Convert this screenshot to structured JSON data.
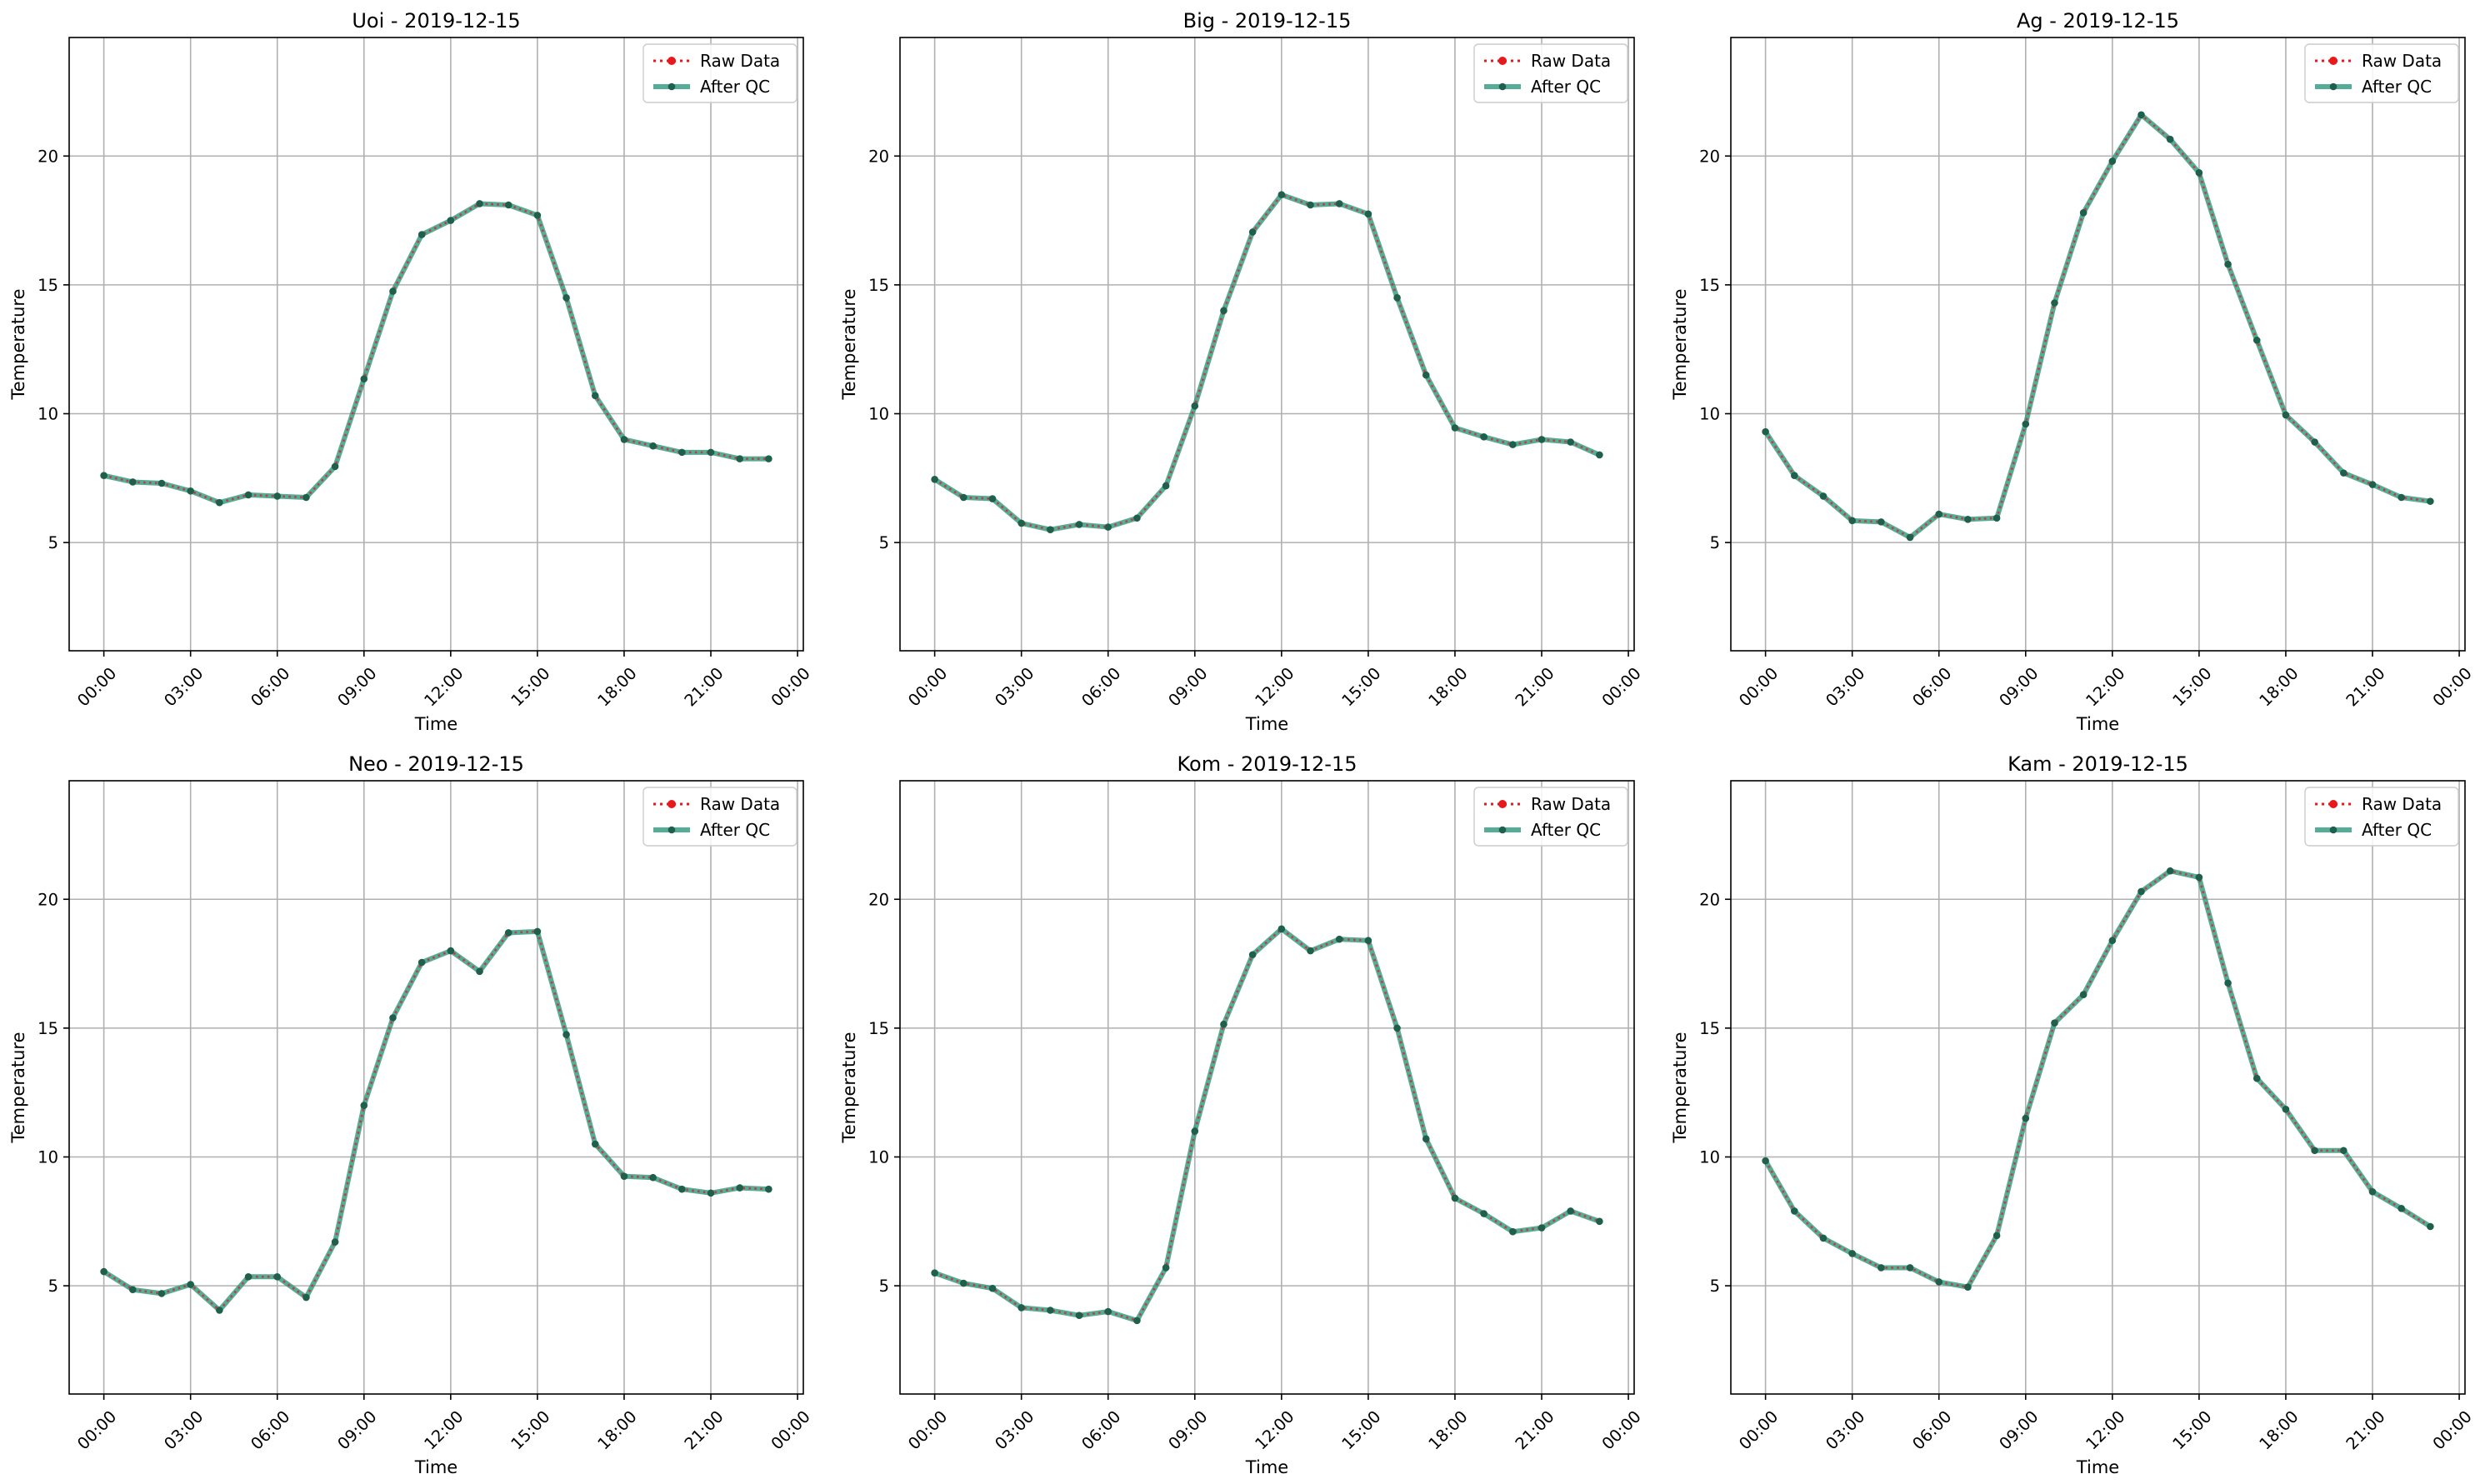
{
  "x_ticks": [
    "00:00",
    "03:00",
    "06:00",
    "09:00",
    "12:00",
    "15:00",
    "18:00",
    "21:00",
    "00:00"
  ],
  "y_ticks": [
    5,
    10,
    15,
    20
  ],
  "legend": {
    "raw": "Raw Data",
    "qc": "After QC"
  },
  "colors": {
    "raw": "#e8191b",
    "qc": "#2f9a80",
    "marker": "#1f5f4c",
    "grid": "#b0b0b0"
  },
  "chart_data": [
    {
      "type": "line",
      "title": "Uoi - 2019-12-15",
      "xlabel": "Time",
      "ylabel": "Temperature",
      "ylim": [
        0.8,
        24.6
      ],
      "xlim_hours": [
        -1.2,
        24.2
      ],
      "grid": true,
      "legend_position": "top-right",
      "x": [
        "00:00",
        "01:00",
        "02:00",
        "03:00",
        "04:00",
        "05:00",
        "06:00",
        "07:00",
        "08:00",
        "09:00",
        "10:00",
        "11:00",
        "12:00",
        "13:00",
        "14:00",
        "15:00",
        "16:00",
        "17:00",
        "18:00",
        "19:00",
        "20:00",
        "21:00",
        "22:00",
        "23:00"
      ],
      "series": [
        {
          "name": "Raw Data",
          "style": "dotted",
          "values": [
            7.6,
            7.35,
            7.3,
            7.0,
            6.55,
            6.85,
            6.8,
            6.75,
            7.95,
            11.35,
            14.75,
            16.95,
            17.5,
            18.15,
            18.1,
            17.7,
            14.5,
            10.7,
            9.0,
            8.75,
            8.5,
            8.5,
            8.25,
            8.25
          ]
        },
        {
          "name": "After QC",
          "style": "solid",
          "values": [
            7.6,
            7.35,
            7.3,
            7.0,
            6.55,
            6.85,
            6.8,
            6.75,
            7.95,
            11.35,
            14.75,
            16.95,
            17.5,
            18.15,
            18.1,
            17.7,
            14.5,
            10.7,
            9.0,
            8.75,
            8.5,
            8.5,
            8.25,
            8.25
          ]
        }
      ]
    },
    {
      "type": "line",
      "title": "Big - 2019-12-15",
      "xlabel": "Time",
      "ylabel": "Temperature",
      "ylim": [
        0.8,
        24.6
      ],
      "xlim_hours": [
        -1.2,
        24.2
      ],
      "grid": true,
      "legend_position": "top-right",
      "x": [
        "00:00",
        "01:00",
        "02:00",
        "03:00",
        "04:00",
        "05:00",
        "06:00",
        "07:00",
        "08:00",
        "09:00",
        "10:00",
        "11:00",
        "12:00",
        "13:00",
        "14:00",
        "15:00",
        "16:00",
        "17:00",
        "18:00",
        "19:00",
        "20:00",
        "21:00",
        "22:00",
        "23:00"
      ],
      "series": [
        {
          "name": "Raw Data",
          "style": "dotted",
          "values": [
            7.45,
            6.75,
            6.7,
            5.75,
            5.5,
            5.7,
            5.6,
            5.95,
            7.2,
            10.3,
            14.0,
            17.05,
            18.5,
            18.1,
            18.15,
            17.75,
            14.5,
            11.5,
            9.45,
            9.1,
            8.8,
            9.0,
            8.9,
            8.4
          ]
        },
        {
          "name": "After QC",
          "style": "solid",
          "values": [
            7.45,
            6.75,
            6.7,
            5.75,
            5.5,
            5.7,
            5.6,
            5.95,
            7.2,
            10.3,
            14.0,
            17.05,
            18.5,
            18.1,
            18.15,
            17.75,
            14.5,
            11.5,
            9.45,
            9.1,
            8.8,
            9.0,
            8.9,
            8.4
          ]
        }
      ]
    },
    {
      "type": "line",
      "title": "Ag - 2019-12-15",
      "xlabel": "Time",
      "ylabel": "Temperature",
      "ylim": [
        0.8,
        24.6
      ],
      "xlim_hours": [
        -1.2,
        24.2
      ],
      "grid": true,
      "legend_position": "top-right",
      "x": [
        "00:00",
        "01:00",
        "02:00",
        "03:00",
        "04:00",
        "05:00",
        "06:00",
        "07:00",
        "08:00",
        "09:00",
        "10:00",
        "11:00",
        "12:00",
        "13:00",
        "14:00",
        "15:00",
        "16:00",
        "17:00",
        "18:00",
        "19:00",
        "20:00",
        "21:00",
        "22:00",
        "23:00"
      ],
      "series": [
        {
          "name": "Raw Data",
          "style": "dotted",
          "values": [
            9.3,
            7.6,
            6.8,
            5.85,
            5.8,
            5.2,
            6.1,
            5.9,
            5.95,
            9.6,
            14.3,
            17.8,
            19.8,
            21.6,
            20.65,
            19.35,
            15.8,
            12.85,
            9.95,
            8.9,
            7.7,
            7.25,
            6.75,
            6.6
          ]
        },
        {
          "name": "After QC",
          "style": "solid",
          "values": [
            9.3,
            7.6,
            6.8,
            5.85,
            5.8,
            5.2,
            6.1,
            5.9,
            5.95,
            9.6,
            14.3,
            17.8,
            19.8,
            21.6,
            20.65,
            19.35,
            15.8,
            12.85,
            9.95,
            8.9,
            7.7,
            7.25,
            6.75,
            6.6
          ]
        }
      ]
    },
    {
      "type": "line",
      "title": "Neo - 2019-12-15",
      "xlabel": "Time",
      "ylabel": "Temperature",
      "ylim": [
        0.8,
        24.6
      ],
      "xlim_hours": [
        -1.2,
        24.2
      ],
      "grid": true,
      "legend_position": "top-right",
      "x": [
        "00:00",
        "01:00",
        "02:00",
        "03:00",
        "04:00",
        "05:00",
        "06:00",
        "07:00",
        "08:00",
        "09:00",
        "10:00",
        "11:00",
        "12:00",
        "13:00",
        "14:00",
        "15:00",
        "16:00",
        "17:00",
        "18:00",
        "19:00",
        "20:00",
        "21:00",
        "22:00",
        "23:00"
      ],
      "series": [
        {
          "name": "Raw Data",
          "style": "dotted",
          "values": [
            5.55,
            4.85,
            4.7,
            5.05,
            4.05,
            5.35,
            5.35,
            4.55,
            6.7,
            12.0,
            15.4,
            17.55,
            18.0,
            17.2,
            18.7,
            18.75,
            14.75,
            10.5,
            9.25,
            9.2,
            8.75,
            8.6,
            8.8,
            8.75
          ]
        },
        {
          "name": "After QC",
          "style": "solid",
          "values": [
            5.55,
            4.85,
            4.7,
            5.05,
            4.05,
            5.35,
            5.35,
            4.55,
            6.7,
            12.0,
            15.4,
            17.55,
            18.0,
            17.2,
            18.7,
            18.75,
            14.75,
            10.5,
            9.25,
            9.2,
            8.75,
            8.6,
            8.8,
            8.75
          ]
        }
      ]
    },
    {
      "type": "line",
      "title": "Kom - 2019-12-15",
      "xlabel": "Time",
      "ylabel": "Temperature",
      "ylim": [
        0.8,
        24.6
      ],
      "xlim_hours": [
        -1.2,
        24.2
      ],
      "grid": true,
      "legend_position": "top-right",
      "x": [
        "00:00",
        "01:00",
        "02:00",
        "03:00",
        "04:00",
        "05:00",
        "06:00",
        "07:00",
        "08:00",
        "09:00",
        "10:00",
        "11:00",
        "12:00",
        "13:00",
        "14:00",
        "15:00",
        "16:00",
        "17:00",
        "18:00",
        "19:00",
        "20:00",
        "21:00",
        "22:00",
        "23:00"
      ],
      "series": [
        {
          "name": "Raw Data",
          "style": "dotted",
          "values": [
            5.5,
            5.1,
            4.9,
            4.15,
            4.05,
            3.85,
            4.0,
            3.65,
            5.7,
            11.0,
            15.15,
            17.85,
            18.85,
            18.0,
            18.45,
            18.4,
            15.0,
            10.7,
            8.4,
            7.8,
            7.1,
            7.25,
            7.9,
            7.5
          ]
        },
        {
          "name": "After QC",
          "style": "solid",
          "values": [
            5.5,
            5.1,
            4.9,
            4.15,
            4.05,
            3.85,
            4.0,
            3.65,
            5.7,
            11.0,
            15.15,
            17.85,
            18.85,
            18.0,
            18.45,
            18.4,
            15.0,
            10.7,
            8.4,
            7.8,
            7.1,
            7.25,
            7.9,
            7.5
          ]
        }
      ]
    },
    {
      "type": "line",
      "title": "Kam - 2019-12-15",
      "xlabel": "Time",
      "ylabel": "Temperature",
      "ylim": [
        0.8,
        24.6
      ],
      "xlim_hours": [
        -1.2,
        24.2
      ],
      "grid": true,
      "legend_position": "top-right",
      "x": [
        "00:00",
        "01:00",
        "02:00",
        "03:00",
        "04:00",
        "05:00",
        "06:00",
        "07:00",
        "08:00",
        "09:00",
        "10:00",
        "11:00",
        "12:00",
        "13:00",
        "14:00",
        "15:00",
        "16:00",
        "17:00",
        "18:00",
        "19:00",
        "20:00",
        "21:00",
        "22:00",
        "23:00"
      ],
      "series": [
        {
          "name": "Raw Data",
          "style": "dotted",
          "values": [
            9.85,
            7.9,
            6.85,
            6.25,
            5.7,
            5.7,
            5.15,
            4.95,
            6.95,
            11.5,
            15.2,
            16.3,
            18.4,
            20.3,
            21.1,
            20.85,
            16.75,
            13.05,
            11.85,
            10.25,
            10.25,
            8.65,
            8.0,
            7.3
          ]
        },
        {
          "name": "After QC",
          "style": "solid",
          "values": [
            9.85,
            7.9,
            6.85,
            6.25,
            5.7,
            5.7,
            5.15,
            4.95,
            6.95,
            11.5,
            15.2,
            16.3,
            18.4,
            20.3,
            21.1,
            20.85,
            16.75,
            13.05,
            11.85,
            10.25,
            10.25,
            8.65,
            8.0,
            7.3
          ]
        }
      ]
    }
  ]
}
